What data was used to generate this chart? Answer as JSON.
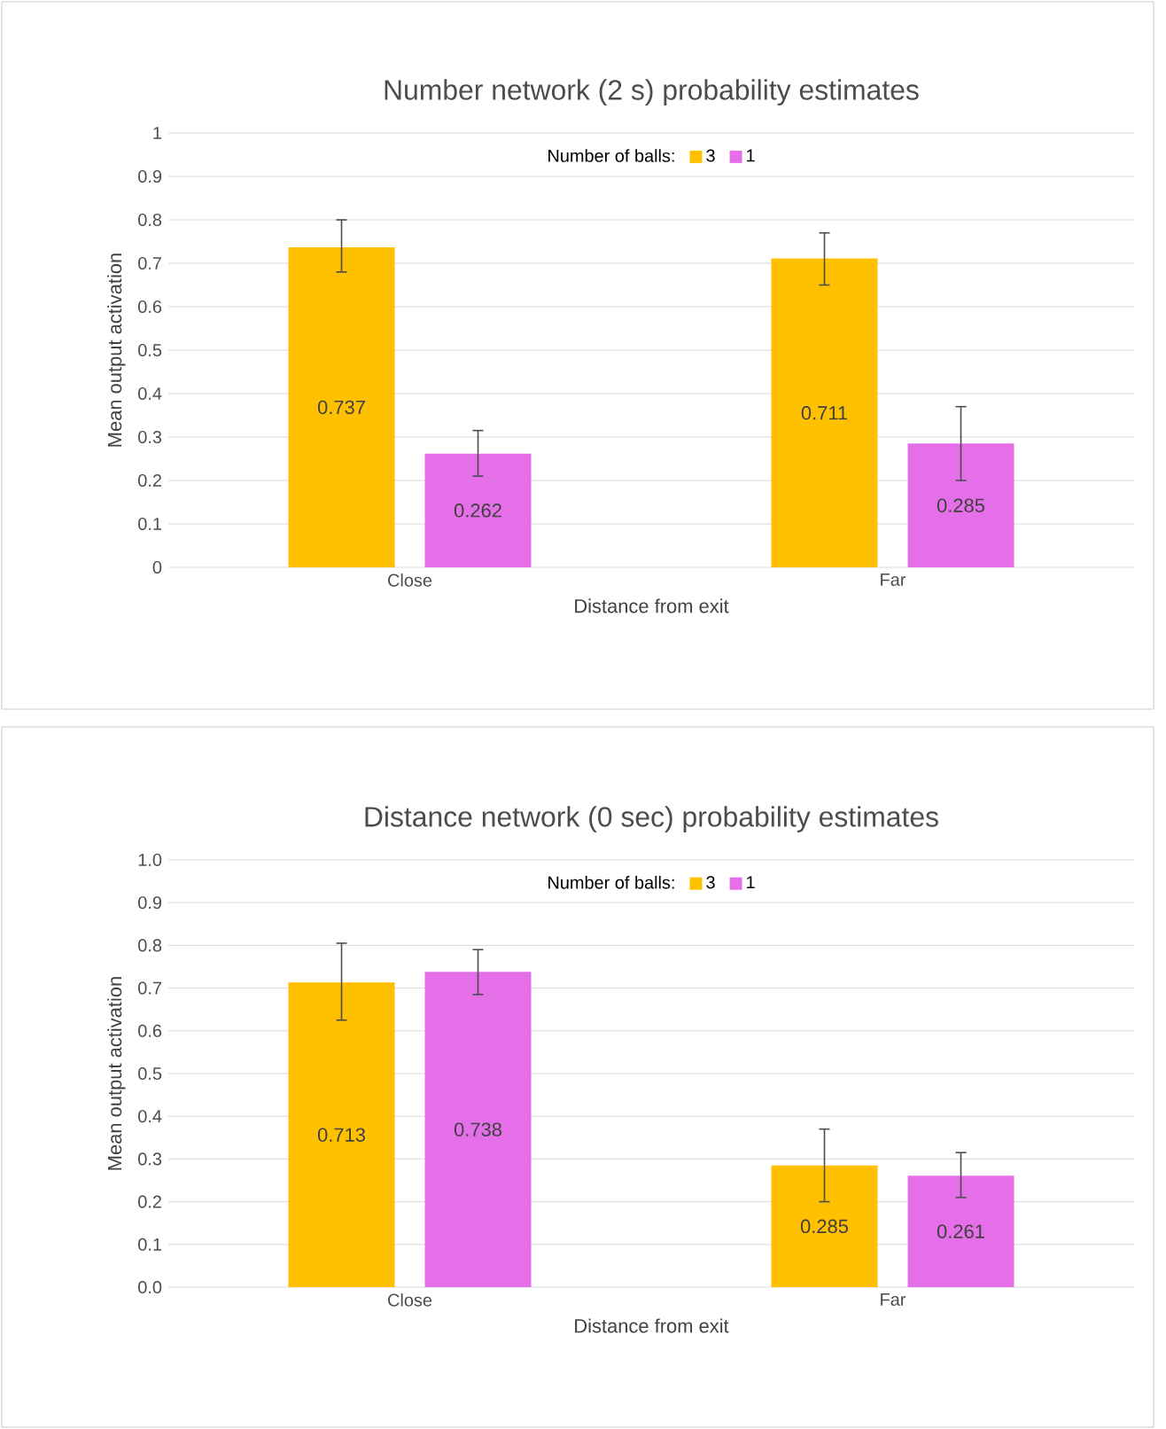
{
  "chart_data": [
    {
      "type": "bar",
      "title": "Number network (2 s) probability estimates",
      "xlabel": "Distance from exit",
      "ylabel": "Mean output activation",
      "legend_title": "Number of balls:",
      "categories": [
        "Close",
        "Far"
      ],
      "series": [
        {
          "name": "3",
          "color": "#ffc000",
          "values": [
            0.737,
            0.711
          ],
          "errors": [
            [
              0.68,
              0.8
            ],
            [
              0.65,
              0.77
            ]
          ]
        },
        {
          "name": "1",
          "color": "#e46fe8",
          "values": [
            0.262,
            0.285
          ],
          "errors": [
            [
              0.21,
              0.315
            ],
            [
              0.2,
              0.37
            ]
          ]
        }
      ],
      "ylim": [
        0,
        1
      ],
      "yticks": [
        0,
        0.1,
        0.2,
        0.3,
        0.4,
        0.5,
        0.6,
        0.7,
        0.8,
        0.9,
        1
      ],
      "grid": "y",
      "legend": "top",
      "data_labels": true
    },
    {
      "type": "bar",
      "title": "Distance network (0 sec) probability estimates",
      "xlabel": "Distance from exit",
      "ylabel": "Mean output activation",
      "legend_title": "Number of balls:",
      "categories": [
        "Close",
        "Far"
      ],
      "series": [
        {
          "name": "3",
          "color": "#ffc000",
          "values": [
            0.713,
            0.285
          ],
          "errors": [
            [
              0.625,
              0.805
            ],
            [
              0.2,
              0.37
            ]
          ]
        },
        {
          "name": "1",
          "color": "#e46fe8",
          "values": [
            0.738,
            0.261
          ],
          "errors": [
            [
              0.685,
              0.79
            ],
            [
              0.21,
              0.315
            ]
          ]
        }
      ],
      "ylim": [
        0,
        1
      ],
      "yticks": [
        {
          "value": 0,
          "label": "0.0"
        },
        {
          "value": 0.1,
          "label": "0.1"
        },
        {
          "value": 0.2,
          "label": "0.2"
        },
        {
          "value": 0.3,
          "label": "0.3"
        },
        {
          "value": 0.4,
          "label": "0.4"
        },
        {
          "value": 0.5,
          "label": "0.5"
        },
        {
          "value": 0.6,
          "label": "0.6"
        },
        {
          "value": 0.7,
          "label": "0.7"
        },
        {
          "value": 0.8,
          "label": "0.8"
        },
        {
          "value": 0.9,
          "label": "0.9"
        },
        {
          "value": 1,
          "label": "1.0"
        }
      ],
      "grid": "y",
      "legend": "top",
      "data_labels": true
    }
  ]
}
